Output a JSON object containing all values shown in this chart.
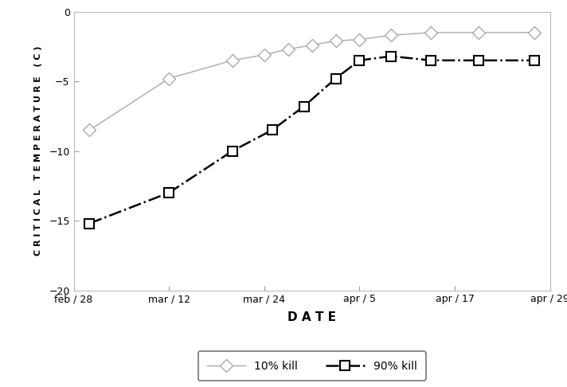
{
  "title": "",
  "xlabel": "D A T E",
  "ylabel": "C R I T I C A L   T E M P E R A T U R E   ( C )",
  "ylim": [
    -20,
    0
  ],
  "yticks": [
    0,
    -5,
    -10,
    -15,
    -20
  ],
  "xtick_labels": [
    "feb / 28",
    "mar / 12",
    "mar / 24",
    "apr / 5",
    "apr / 17",
    "apr / 29"
  ],
  "xtick_values": [
    0,
    12,
    24,
    36,
    48,
    60
  ],
  "line1_label": "10% kill",
  "line1_color": "#aaaaaa",
  "line2_label": "90% kill",
  "line2_color": "#000000",
  "line1_x": [
    2,
    12,
    20,
    24,
    27,
    30,
    33,
    36,
    40,
    45,
    51,
    58
  ],
  "line1_y": [
    -8.5,
    -4.8,
    -3.5,
    -3.1,
    -2.7,
    -2.4,
    -2.1,
    -2.0,
    -1.7,
    -1.5,
    -1.5,
    -1.5
  ],
  "line2_x": [
    2,
    12,
    20,
    25,
    29,
    33,
    36,
    40,
    45,
    51,
    58
  ],
  "line2_y": [
    -15.2,
    -13.0,
    -10.0,
    -8.5,
    -6.8,
    -4.8,
    -3.5,
    -3.2,
    -3.5,
    -3.5,
    -3.5
  ],
  "background_color": "#ffffff",
  "plot_bg_color": "#ffffff"
}
